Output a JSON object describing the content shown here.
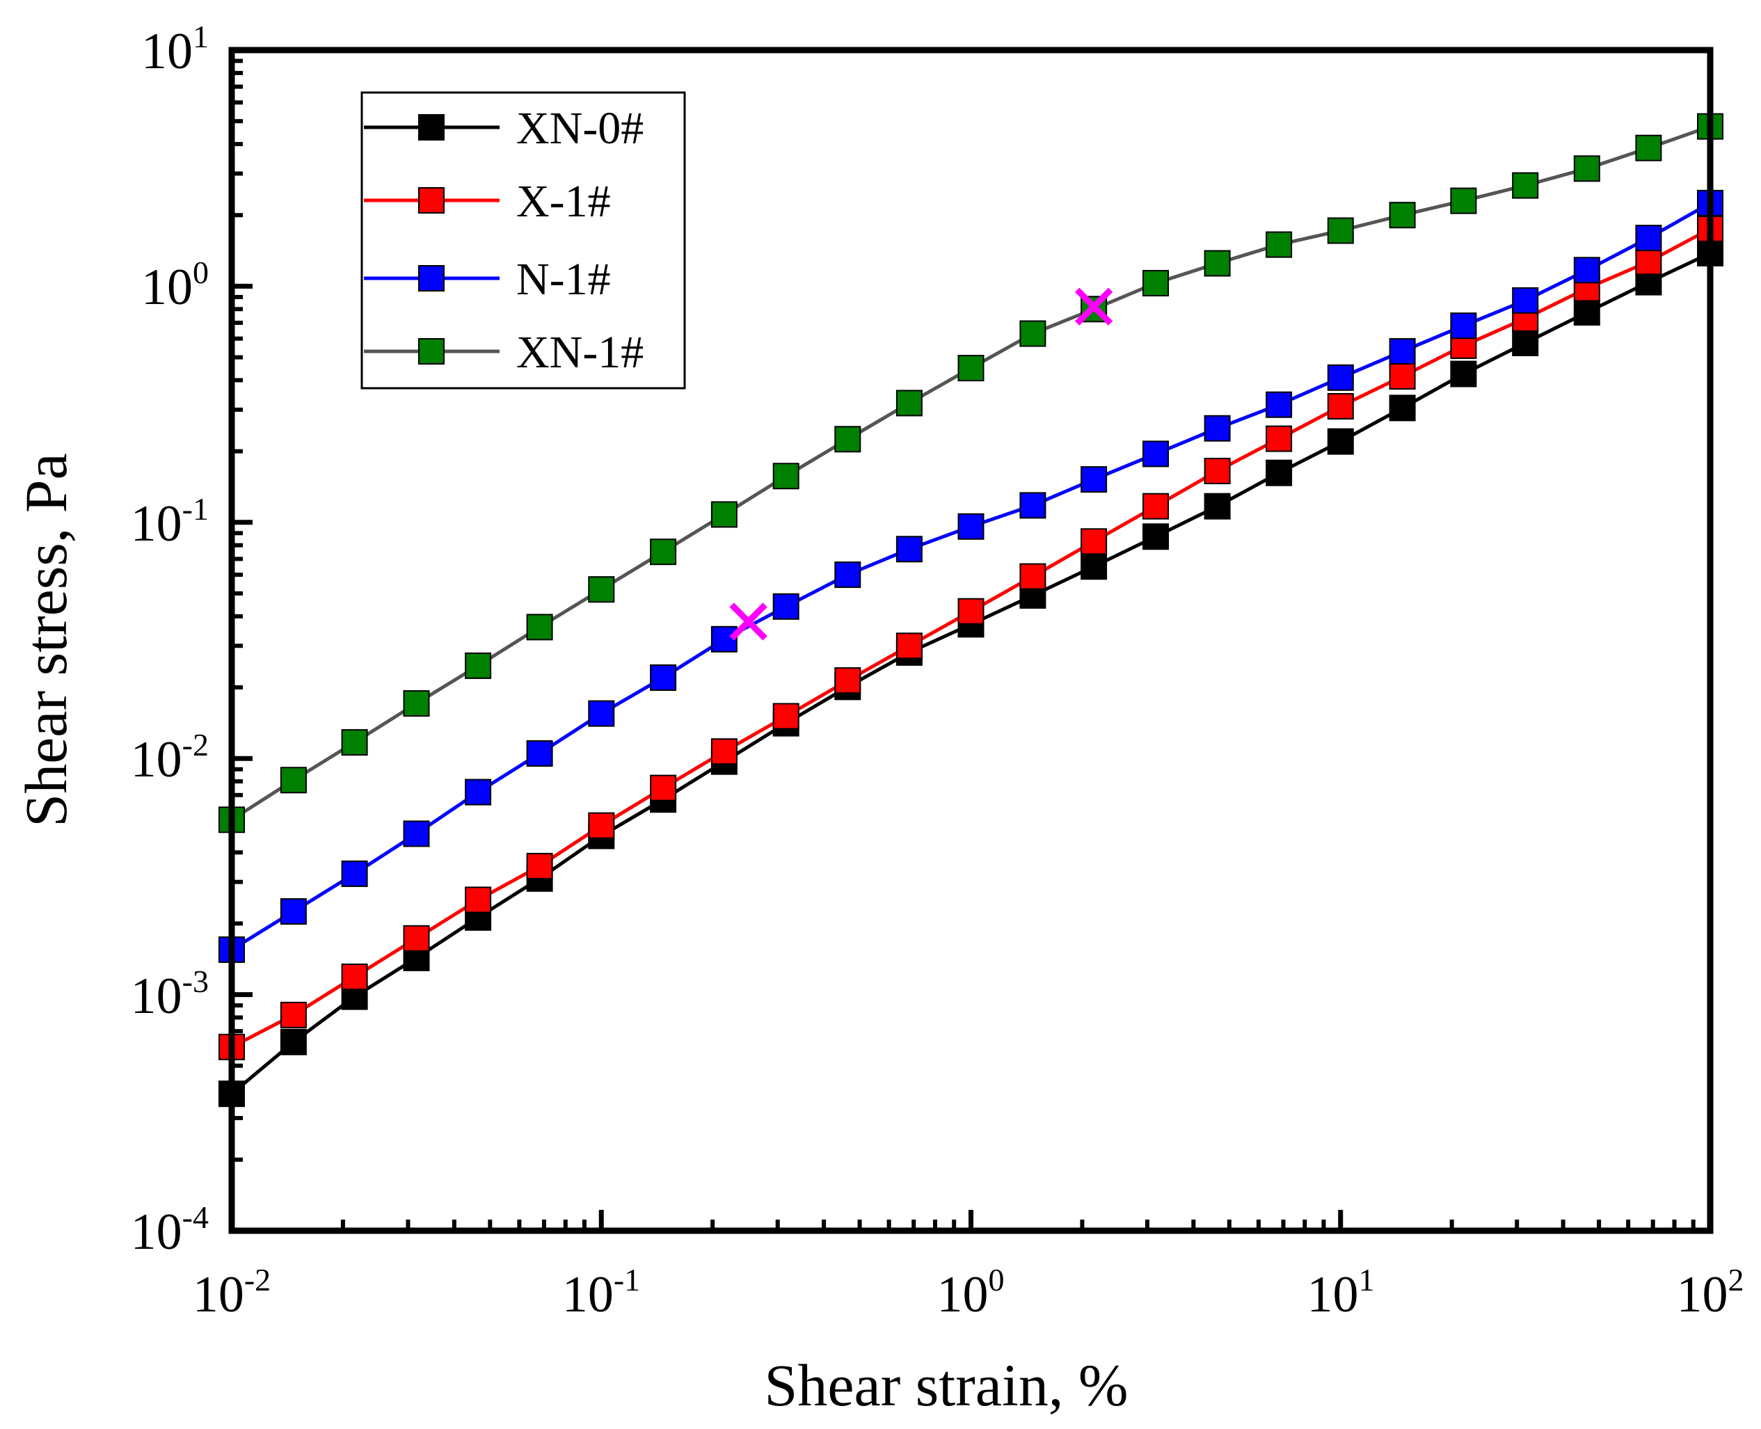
{
  "chart_data": {
    "type": "line",
    "xscale": "log",
    "yscale": "log",
    "xlabel": "Shear strain, %",
    "ylabel": "Shear stress, Pa",
    "xlim": [
      0.01,
      100
    ],
    "ylim": [
      0.0001,
      10
    ],
    "x_ticks": [
      {
        "base": "10",
        "exp": "-2"
      },
      {
        "base": "10",
        "exp": "-1"
      },
      {
        "base": "10",
        "exp": "0"
      },
      {
        "base": "10",
        "exp": "1"
      },
      {
        "base": "10",
        "exp": "2"
      }
    ],
    "y_ticks": [
      {
        "base": "10",
        "exp": "-4"
      },
      {
        "base": "10",
        "exp": "-3"
      },
      {
        "base": "10",
        "exp": "-2"
      },
      {
        "base": "10",
        "exp": "-1"
      },
      {
        "base": "10",
        "exp": "0"
      },
      {
        "base": "10",
        "exp": "1"
      }
    ],
    "legend_position": "top-left",
    "x": [
      0.01,
      0.0147,
      0.0215,
      0.0316,
      0.0464,
      0.0681,
      0.1,
      0.147,
      0.215,
      0.316,
      0.464,
      0.681,
      1.0,
      1.47,
      2.15,
      3.16,
      4.64,
      6.81,
      10,
      14.7,
      21.5,
      31.6,
      46.4,
      68.1,
      100
    ],
    "series": [
      {
        "name": "XN-0#",
        "color": "#000000",
        "values": [
          0.00038,
          0.00063,
          0.00098,
          0.00143,
          0.00212,
          0.0031,
          0.0047,
          0.0067,
          0.0097,
          0.0141,
          0.0201,
          0.0281,
          0.037,
          0.049,
          0.065,
          0.087,
          0.117,
          0.162,
          0.22,
          0.305,
          0.425,
          0.575,
          0.775,
          1.04,
          1.38
        ]
      },
      {
        "name": "X-1#",
        "color": "#ff0000",
        "values": [
          0.0006,
          0.00082,
          0.00119,
          0.00173,
          0.00252,
          0.0035,
          0.0052,
          0.0075,
          0.0107,
          0.0151,
          0.0214,
          0.03,
          0.042,
          0.059,
          0.083,
          0.117,
          0.165,
          0.226,
          0.31,
          0.415,
          0.56,
          0.73,
          0.98,
          1.27,
          1.75
        ]
      },
      {
        "name": "N-1#",
        "color": "#0000ff",
        "values": [
          0.00155,
          0.00225,
          0.00325,
          0.0048,
          0.0072,
          0.0105,
          0.0155,
          0.022,
          0.032,
          0.044,
          0.06,
          0.077,
          0.096,
          0.118,
          0.152,
          0.195,
          0.25,
          0.315,
          0.41,
          0.53,
          0.68,
          0.87,
          1.17,
          1.6,
          2.25
        ]
      },
      {
        "name": "XN-1#",
        "color": "#555555",
        "marker_color": "#008000",
        "values": [
          0.0055,
          0.0081,
          0.0117,
          0.0171,
          0.0247,
          0.036,
          0.052,
          0.075,
          0.108,
          0.157,
          0.225,
          0.32,
          0.45,
          0.63,
          0.8,
          1.03,
          1.25,
          1.5,
          1.72,
          2.0,
          2.3,
          2.67,
          3.15,
          3.85,
          4.75
        ]
      }
    ],
    "annotations": [
      {
        "marker": "x",
        "color": "#ff00ff",
        "x": 0.25,
        "y": 0.038,
        "series": "N-1#"
      },
      {
        "marker": "x",
        "color": "#ff00ff",
        "x": 2.15,
        "y": 0.82,
        "series": "XN-1#"
      }
    ]
  }
}
